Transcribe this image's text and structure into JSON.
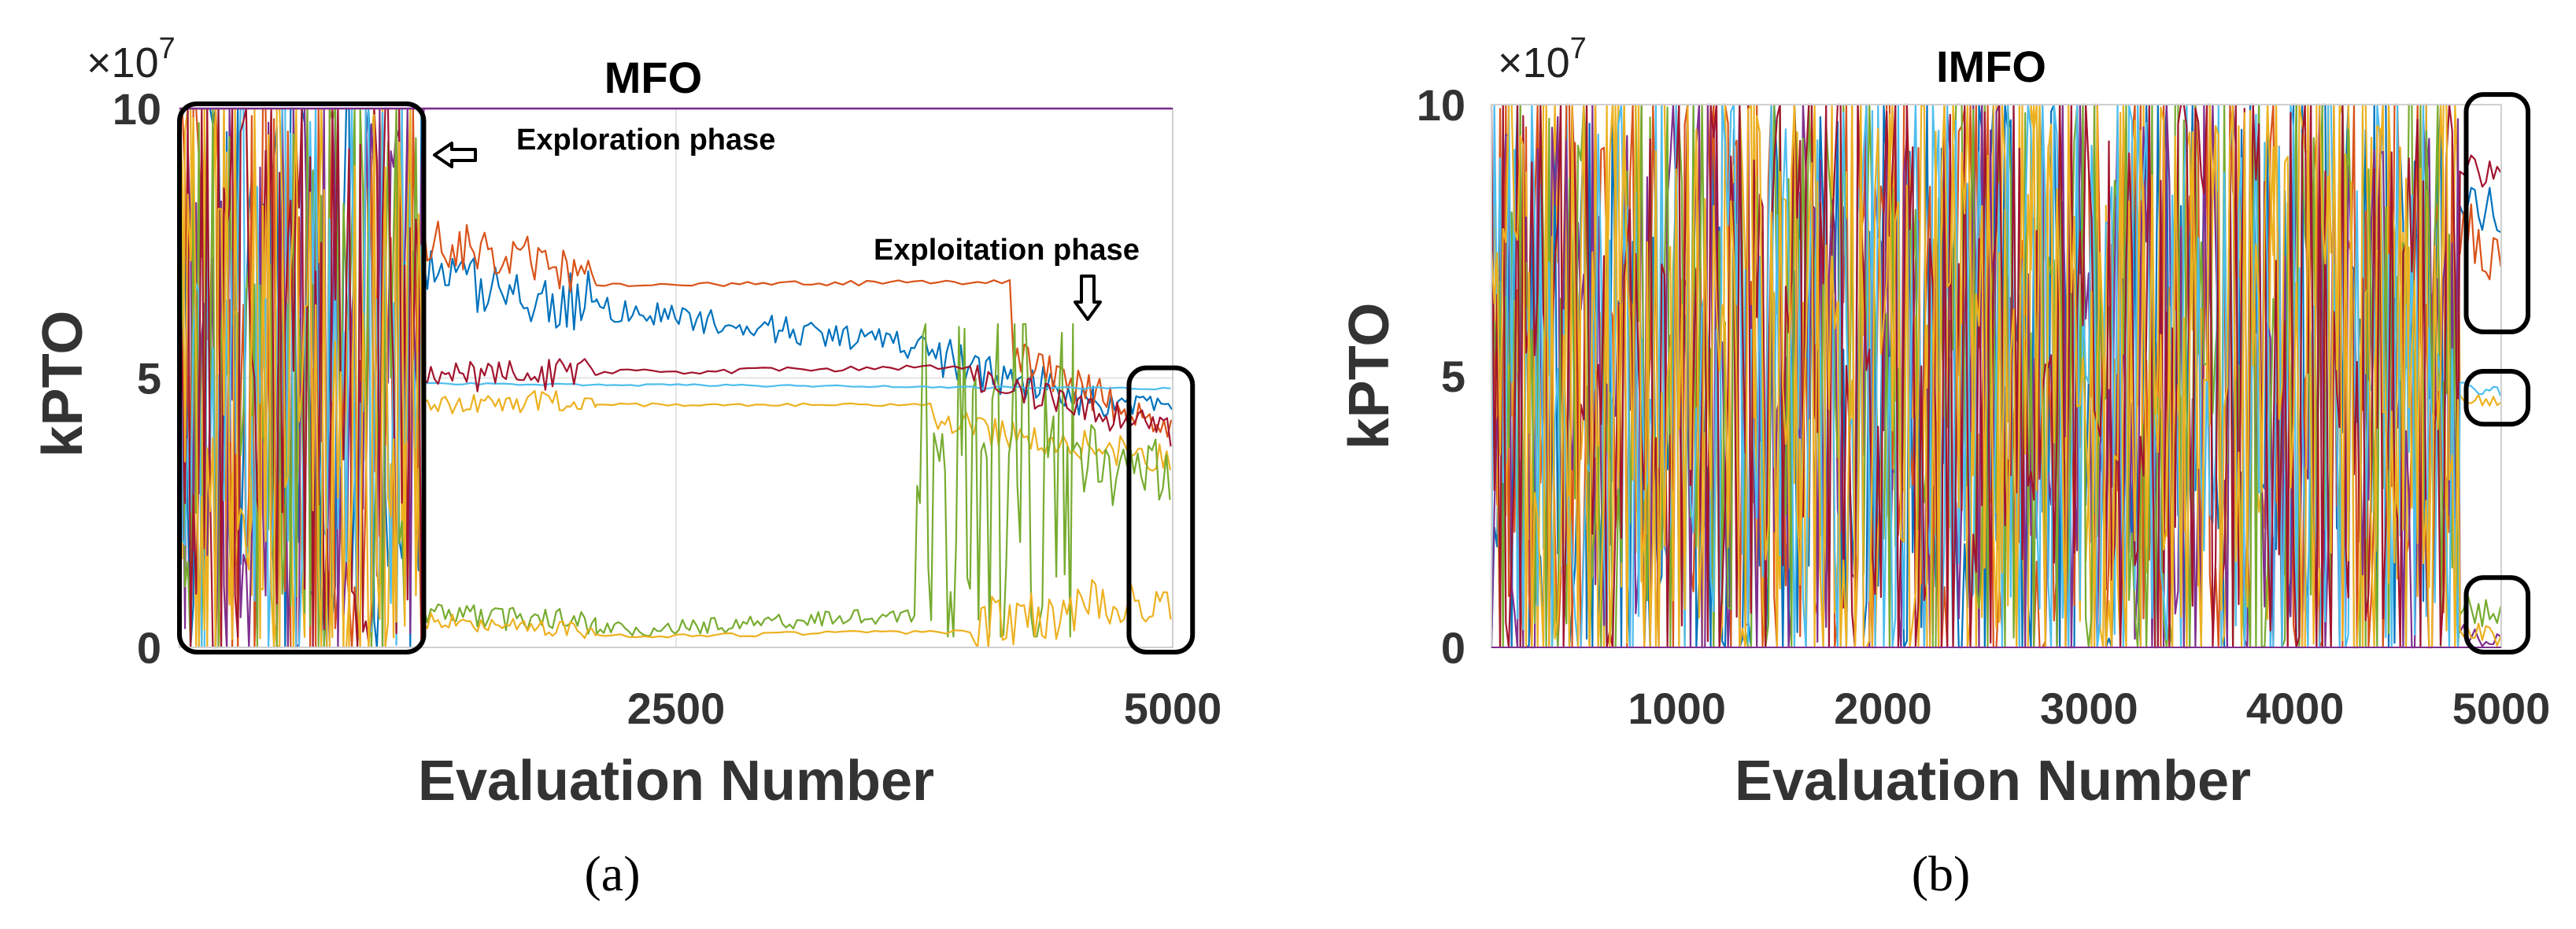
{
  "figure": {
    "caption_a": "(a)",
    "caption_b": "(b)"
  },
  "chart_data": [
    {
      "type": "line",
      "title": "MFO",
      "xlabel": "Evaluation Number",
      "ylabel": "kPTO",
      "y_exponent": "×10",
      "y_exponent_power": "7",
      "xlim": [
        0,
        5000
      ],
      "ylim": [
        0,
        10
      ],
      "xticks": [
        "2500",
        "5000"
      ],
      "xtick_values": [
        2500,
        5000
      ],
      "yticks": [
        "0",
        "5",
        "10"
      ],
      "ytick_values": [
        0,
        5,
        10
      ],
      "annotations": [
        {
          "text": "Exploration phase",
          "arrow": "left"
        },
        {
          "text": "Exploitation phase",
          "arrow": "down"
        }
      ],
      "highlight_boxes": [
        {
          "x0": 0,
          "x1": 1230,
          "y0": 0,
          "y1": 10
        },
        {
          "x0": 4780,
          "x1": 5100,
          "y0": 0,
          "y1": 5.1
        }
      ],
      "series": [
        {
          "name": "series-1",
          "color": "#0072BD",
          "segments": [
            {
              "x0": 0,
              "x1": 1230,
              "mode": "noise"
            },
            {
              "x0": 1230,
              "x1": 2100,
              "mode": "walk",
              "start": 6.8,
              "end": 6.4,
              "noise": 0.6
            },
            {
              "x0": 2100,
              "x1": 3700,
              "mode": "walk",
              "start": 6.3,
              "end": 5.6,
              "noise": 0.25
            },
            {
              "x0": 3700,
              "x1": 4600,
              "mode": "walk",
              "start": 5.5,
              "end": 4.6,
              "noise": 0.4
            },
            {
              "x0": 4600,
              "x1": 5000,
              "mode": "walk",
              "start": 4.6,
              "end": 4.4,
              "noise": 0.3
            }
          ]
        },
        {
          "name": "series-2",
          "color": "#D95319",
          "segments": [
            {
              "x0": 0,
              "x1": 1230,
              "mode": "noise"
            },
            {
              "x0": 1230,
              "x1": 2100,
              "mode": "walk",
              "start": 7.6,
              "end": 6.9,
              "noise": 0.45
            },
            {
              "x0": 2100,
              "x1": 4200,
              "mode": "step",
              "start": 6.7,
              "end": 6.8,
              "noise": 0.05
            },
            {
              "x0": 4200,
              "x1": 5000,
              "mode": "walk",
              "start": 5.4,
              "end": 4.0,
              "noise": 0.35
            }
          ]
        },
        {
          "name": "series-3",
          "color": "#EDB120",
          "segments": [
            {
              "x0": 0,
              "x1": 1230,
              "mode": "noise"
            },
            {
              "x0": 1230,
              "x1": 2100,
              "mode": "walk",
              "start": 4.5,
              "end": 4.6,
              "noise": 0.2
            },
            {
              "x0": 2100,
              "x1": 3800,
              "mode": "step",
              "start": 4.5,
              "end": 4.5,
              "noise": 0.03
            },
            {
              "x0": 3800,
              "x1": 5000,
              "mode": "walk",
              "start": 4.2,
              "end": 3.5,
              "noise": 0.3
            }
          ]
        },
        {
          "name": "series-4",
          "color": "#7E2F8E",
          "segments": [
            {
              "x0": 0,
              "x1": 1230,
              "mode": "noise"
            },
            {
              "x0": 1230,
              "x1": 5000,
              "mode": "step",
              "start": 10.0,
              "end": 10.0,
              "noise": 0.0
            }
          ]
        },
        {
          "name": "series-5",
          "color": "#77AC30",
          "segments": [
            {
              "x0": 0,
              "x1": 1230,
              "mode": "noise"
            },
            {
              "x0": 1230,
              "x1": 2100,
              "mode": "walk",
              "start": 0.7,
              "end": 0.4,
              "noise": 0.25
            },
            {
              "x0": 2100,
              "x1": 3700,
              "mode": "walk",
              "start": 0.3,
              "end": 0.6,
              "noise": 0.15
            },
            {
              "x0": 3700,
              "x1": 4500,
              "mode": "noise",
              "lo": 0.2,
              "hi": 6.0
            },
            {
              "x0": 4500,
              "x1": 5000,
              "mode": "walk",
              "start": 3.5,
              "end": 3.0,
              "noise": 0.8
            }
          ]
        },
        {
          "name": "series-6",
          "color": "#4DBEEE",
          "segments": [
            {
              "x0": 0,
              "x1": 1230,
              "mode": "noise"
            },
            {
              "x0": 1230,
              "x1": 5000,
              "mode": "step",
              "start": 4.9,
              "end": 4.8,
              "noise": 0.02
            }
          ]
        },
        {
          "name": "series-7",
          "color": "#A2142F",
          "segments": [
            {
              "x0": 0,
              "x1": 1230,
              "mode": "noise"
            },
            {
              "x0": 1230,
              "x1": 2100,
              "mode": "walk",
              "start": 5.0,
              "end": 5.1,
              "noise": 0.3
            },
            {
              "x0": 2100,
              "x1": 4000,
              "mode": "step",
              "start": 5.1,
              "end": 5.2,
              "noise": 0.05
            },
            {
              "x0": 4000,
              "x1": 5000,
              "mode": "walk",
              "start": 5.0,
              "end": 4.0,
              "noise": 0.3
            }
          ]
        },
        {
          "name": "series-8",
          "color": "#EDB120",
          "segments": [
            {
              "x0": 0,
              "x1": 1230,
              "mode": "noise"
            },
            {
              "x0": 1230,
              "x1": 2100,
              "mode": "walk",
              "start": 0.5,
              "end": 0.3,
              "noise": 0.15
            },
            {
              "x0": 2100,
              "x1": 4000,
              "mode": "step",
              "start": 0.2,
              "end": 0.3,
              "noise": 0.04
            },
            {
              "x0": 4000,
              "x1": 5000,
              "mode": "walk",
              "start": 0.4,
              "end": 1.0,
              "noise": 0.5
            }
          ]
        }
      ]
    },
    {
      "type": "line",
      "title": "IMFO",
      "xlabel": "Evaluation Number",
      "ylabel": "kPTO",
      "y_exponent": "×10",
      "y_exponent_power": "7",
      "xlim": [
        100,
        5000
      ],
      "ylim": [
        0,
        10
      ],
      "xticks": [
        "1000",
        "2000",
        "3000",
        "4000",
        "5000"
      ],
      "xtick_values": [
        1000,
        2000,
        3000,
        4000,
        5000
      ],
      "yticks": [
        "0",
        "5",
        "10"
      ],
      "ytick_values": [
        0,
        5,
        10
      ],
      "highlight_boxes": [
        {
          "x0": 4830,
          "x1": 5130,
          "y0": 5.9,
          "y1": 10.1
        },
        {
          "x0": 4830,
          "x1": 5130,
          "y0": 4.2,
          "y1": 5.0
        },
        {
          "x0": 4830,
          "x1": 5130,
          "y0": 0.0,
          "y1": 1.2
        }
      ],
      "series": [
        {
          "name": "series-1",
          "color": "#0072BD",
          "segments": [
            {
              "x0": 100,
              "x1": 4800,
              "mode": "noise"
            },
            {
              "x0": 4800,
              "x1": 5000,
              "mode": "walk",
              "start": 8.3,
              "end": 8.0,
              "noise": 0.5
            }
          ]
        },
        {
          "name": "series-2",
          "color": "#D95319",
          "segments": [
            {
              "x0": 100,
              "x1": 4800,
              "mode": "noise"
            },
            {
              "x0": 4800,
              "x1": 5000,
              "mode": "walk",
              "start": 7.8,
              "end": 7.2,
              "noise": 0.6
            }
          ]
        },
        {
          "name": "series-3",
          "color": "#EDB120",
          "segments": [
            {
              "x0": 100,
              "x1": 4800,
              "mode": "noise"
            },
            {
              "x0": 4800,
              "x1": 5000,
              "mode": "walk",
              "start": 4.6,
              "end": 4.5,
              "noise": 0.1
            }
          ]
        },
        {
          "name": "series-4",
          "color": "#7E2F8E",
          "segments": [
            {
              "x0": 100,
              "x1": 4800,
              "mode": "noise"
            },
            {
              "x0": 4800,
              "x1": 5000,
              "mode": "walk",
              "start": 0.3,
              "end": 0.1,
              "noise": 0.2
            }
          ]
        },
        {
          "name": "series-5",
          "color": "#77AC30",
          "segments": [
            {
              "x0": 100,
              "x1": 4800,
              "mode": "noise"
            },
            {
              "x0": 4800,
              "x1": 5000,
              "mode": "walk",
              "start": 0.8,
              "end": 0.5,
              "noise": 0.3
            }
          ]
        },
        {
          "name": "series-6",
          "color": "#4DBEEE",
          "segments": [
            {
              "x0": 100,
              "x1": 4800,
              "mode": "noise"
            },
            {
              "x0": 4800,
              "x1": 5000,
              "mode": "walk",
              "start": 4.8,
              "end": 4.7,
              "noise": 0.1
            }
          ]
        },
        {
          "name": "series-7",
          "color": "#A2142F",
          "segments": [
            {
              "x0": 100,
              "x1": 4800,
              "mode": "noise"
            },
            {
              "x0": 4800,
              "x1": 5000,
              "mode": "walk",
              "start": 8.7,
              "end": 8.9,
              "noise": 0.4
            }
          ]
        },
        {
          "name": "series-8",
          "color": "#EDB120",
          "segments": [
            {
              "x0": 100,
              "x1": 4800,
              "mode": "noise"
            },
            {
              "x0": 4800,
              "x1": 5000,
              "mode": "walk",
              "start": 0.4,
              "end": 0.2,
              "noise": 0.2
            }
          ]
        }
      ]
    }
  ]
}
